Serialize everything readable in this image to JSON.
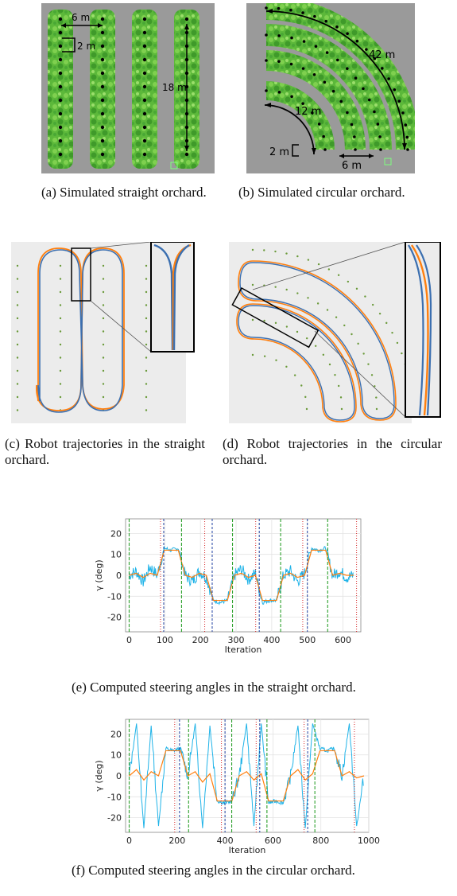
{
  "figure_a": {
    "label_6m": "6 m",
    "label_2m": "2 m",
    "label_18m": "18 m",
    "caption": "(a) Simulated straight orchard."
  },
  "figure_b": {
    "label_42m": "42 m",
    "label_12m": "12 m",
    "label_2m": "2 m",
    "label_6m": "6 m",
    "caption": "(b) Simulated circular orchard."
  },
  "figure_c": {
    "caption": "(c) Robot trajectories in the straight orchard."
  },
  "figure_d": {
    "caption": "(d) Robot trajectories in the circular orchard."
  },
  "figure_e": {
    "caption": "(e) Computed steering angles in the straight orchard."
  },
  "figure_f": {
    "caption": "(f) Computed steering angles in the circular orchard."
  },
  "colors": {
    "orange": "#ff7f0e",
    "blue": "#3b6fb0",
    "cyan": "#1fb3e8",
    "green_marker": "#2ca02c",
    "red_marker": "#d62728",
    "tree_green": "#5cb83a",
    "ground_gray": "#9a9a9a"
  },
  "chart_data": [
    {
      "type": "line",
      "title": "",
      "xlabel": "Iteration",
      "ylabel": "γ (deg)",
      "xlim": [
        -10,
        650
      ],
      "ylim": [
        -27,
        27
      ],
      "xticks": [
        0,
        100,
        200,
        300,
        400,
        500,
        600
      ],
      "yticks": [
        -20,
        -10,
        0,
        10,
        20
      ],
      "grid": true,
      "series": [
        {
          "values": [
            0,
            2,
            -3,
            4,
            0,
            13,
            12,
            13,
            0,
            -3,
            2,
            -1,
            -12,
            -13,
            -12,
            0,
            3,
            -2,
            1,
            -13,
            -12,
            -12,
            0,
            2,
            -3,
            1,
            13,
            12,
            13,
            0,
            2,
            -1,
            0
          ]
        },
        {
          "values": [
            0,
            1,
            -1,
            1,
            0,
            12,
            12,
            12,
            0,
            -1,
            1,
            0,
            -12,
            -12,
            -12,
            0,
            1,
            -1,
            0,
            -12,
            -12,
            -12,
            0,
            1,
            -1,
            0,
            12,
            12,
            12,
            0,
            1,
            0,
            0
          ]
        }
      ],
      "green_lines_x": [
        0,
        147,
        290,
        425,
        557
      ],
      "red_lines_x": [
        88,
        212,
        355,
        487,
        638
      ],
      "blue_lines_x": [
        97,
        233,
        365,
        500
      ]
    },
    {
      "type": "line",
      "title": "",
      "xlabel": "Iteration",
      "ylabel": "γ (deg)",
      "xlim": [
        -15,
        1000
      ],
      "ylim": [
        -27,
        27
      ],
      "xticks": [
        0,
        200,
        400,
        600,
        800,
        1000
      ],
      "yticks": [
        -20,
        -10,
        0,
        10,
        20
      ],
      "grid": true,
      "series": [
        {
          "values": [
            0,
            25,
            -25,
            24,
            -24,
            13,
            12,
            13,
            0,
            25,
            -25,
            24,
            -12,
            -13,
            -12,
            0,
            25,
            -24,
            25,
            -13,
            -12,
            -13,
            0,
            24,
            -25,
            25,
            13,
            12,
            13,
            0,
            25,
            -24,
            0
          ]
        },
        {
          "values": [
            0,
            3,
            -2,
            2,
            0,
            12,
            12,
            12,
            0,
            2,
            -3,
            1,
            -12,
            -12,
            -12,
            0,
            2,
            -2,
            1,
            -12,
            -12,
            -12,
            0,
            3,
            -2,
            1,
            12,
            12,
            12,
            0,
            2,
            -1,
            0
          ]
        }
      ],
      "green_lines_x": [
        0,
        248,
        428,
        575,
        775
      ],
      "red_lines_x": [
        190,
        385,
        530,
        730,
        940
      ],
      "blue_lines_x": [
        210,
        400,
        545,
        745
      ]
    }
  ]
}
